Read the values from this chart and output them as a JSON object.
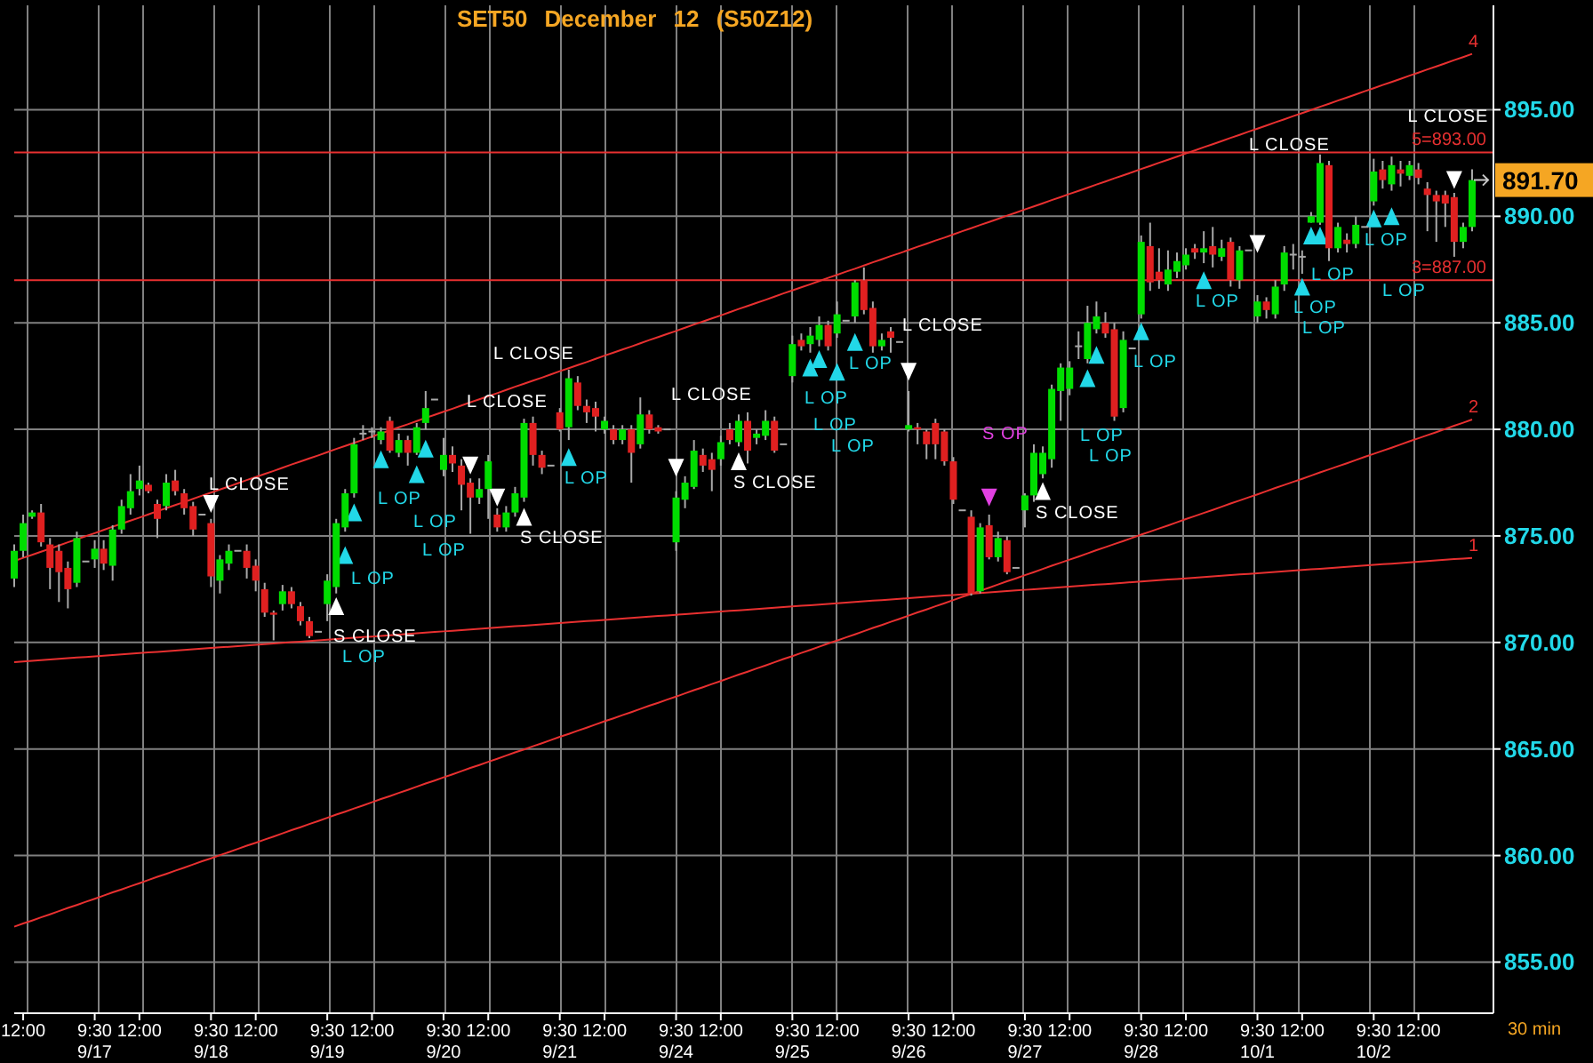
{
  "chart_data": {
    "type": "candlestick",
    "title": "SET50 December 12 (S50Z12)",
    "categories": [
      null,
      "12:00",
      null,
      null,
      null,
      null,
      null,
      null,
      null,
      "9:30\n9/17",
      null,
      null,
      null,
      null,
      "12:00",
      null,
      null,
      null,
      null,
      null,
      null,
      null,
      "9:30\n9/18",
      null,
      null,
      null,
      null,
      "12:00",
      null,
      null,
      null,
      null,
      null,
      null,
      null,
      "9:30\n9/19",
      null,
      null,
      null,
      null,
      "12:00",
      null,
      null,
      null,
      null,
      null,
      null,
      null,
      "9:30\n9/20",
      null,
      null,
      null,
      null,
      "12:00",
      null,
      null,
      null,
      null,
      null,
      null,
      null,
      "9:30\n9/21",
      null,
      null,
      null,
      null,
      "12:00",
      null,
      null,
      null,
      null,
      null,
      null,
      null,
      "9:30\n9/24",
      null,
      null,
      null,
      null,
      "12:00",
      null,
      null,
      null,
      null,
      null,
      null,
      null,
      "9:30\n9/25",
      null,
      null,
      null,
      null,
      "12:00",
      null,
      null,
      null,
      null,
      null,
      null,
      null,
      "9:30\n9/26",
      null,
      null,
      null,
      null,
      "12:00",
      null,
      null,
      null,
      null,
      null,
      null,
      null,
      "9:30\n9/27",
      null,
      null,
      null,
      null,
      "12:00",
      null,
      null,
      null,
      null,
      null,
      null,
      null,
      "9:30\n9/28",
      null,
      null,
      null,
      null,
      "12:00",
      null,
      null,
      null,
      null,
      null,
      null,
      null,
      "9:30\n10/1",
      null,
      null,
      null,
      null,
      "12:00",
      null,
      null,
      null,
      null,
      null,
      null,
      null,
      "9:30\n10/2",
      null,
      null,
      null,
      null,
      "12:00",
      null,
      null,
      null,
      null,
      null,
      null
    ],
    "ohlc": [
      [
        873.0,
        874.6,
        872.6,
        874.3
      ],
      [
        874.3,
        876.0,
        874.0,
        875.6
      ],
      [
        875.9,
        876.2,
        875.8,
        876.1
      ],
      [
        876.1,
        876.5,
        874.5,
        874.7
      ],
      [
        874.6,
        874.9,
        872.5,
        873.5
      ],
      [
        874.3,
        874.6,
        871.9,
        873.3
      ],
      [
        873.5,
        873.8,
        871.6,
        872.5
      ],
      [
        872.8,
        875.2,
        872.6,
        874.9
      ],
      [
        873.8,
        873.8,
        873.8,
        873.8
      ],
      [
        873.9,
        874.8,
        873.5,
        874.4
      ],
      [
        874.4,
        874.8,
        873.4,
        873.7
      ],
      [
        873.6,
        875.5,
        872.9,
        875.3
      ],
      [
        875.3,
        876.7,
        875.1,
        876.4
      ],
      [
        876.3,
        877.9,
        876.0,
        877.1
      ],
      [
        877.2,
        878.3,
        876.9,
        877.6
      ],
      [
        877.4,
        877.5,
        877.0,
        877.1
      ],
      [
        876.5,
        876.7,
        874.9,
        875.8
      ],
      [
        876.4,
        877.9,
        876.2,
        877.5
      ],
      [
        877.6,
        878.1,
        876.9,
        877.1
      ],
      [
        877.0,
        877.2,
        876.0,
        876.3
      ],
      [
        876.4,
        876.6,
        875.0,
        875.3
      ],
      [
        876.0,
        876.0,
        876.0,
        876.0
      ],
      [
        875.6,
        875.8,
        872.6,
        873.1
      ],
      [
        872.9,
        874.1,
        872.3,
        873.9
      ],
      [
        873.7,
        874.6,
        873.4,
        874.3
      ],
      [
        874.3,
        874.3,
        874.3,
        874.3
      ],
      [
        874.3,
        874.6,
        873.0,
        873.5
      ],
      [
        873.6,
        873.9,
        872.4,
        872.9
      ],
      [
        872.5,
        872.8,
        871.2,
        871.4
      ],
      [
        871.4,
        871.5,
        870.1,
        871.3
      ],
      [
        871.8,
        872.7,
        871.5,
        872.4
      ],
      [
        872.4,
        872.6,
        871.6,
        871.8
      ],
      [
        871.7,
        871.9,
        870.8,
        871.0
      ],
      [
        871.0,
        871.2,
        870.2,
        870.3
      ],
      [
        870.5,
        870.5,
        870.5,
        870.5
      ],
      [
        871.8,
        873.2,
        871.0,
        872.9
      ],
      [
        872.6,
        875.8,
        872.3,
        875.6
      ],
      [
        875.4,
        877.2,
        875.2,
        877.0
      ],
      [
        877.0,
        879.6,
        876.8,
        879.3
      ],
      [
        879.8,
        880.2,
        879.5,
        879.8
      ],
      [
        879.9,
        880.1,
        879.6,
        879.9
      ],
      [
        879.5,
        880.1,
        879.3,
        879.9
      ],
      [
        880.4,
        880.6,
        878.9,
        879.0
      ],
      [
        878.9,
        879.8,
        878.7,
        879.5
      ],
      [
        879.5,
        879.7,
        878.3,
        878.9
      ],
      [
        878.9,
        880.3,
        878.8,
        880.1
      ],
      [
        880.3,
        881.8,
        880.0,
        881.0
      ],
      [
        881.4,
        881.4,
        881.4,
        881.4
      ],
      [
        878.1,
        879.6,
        877.8,
        878.8
      ],
      [
        878.8,
        879.2,
        878.0,
        878.4
      ],
      [
        878.3,
        878.6,
        876.2,
        877.4
      ],
      [
        877.5,
        877.7,
        875.1,
        876.8
      ],
      [
        876.8,
        877.7,
        876.5,
        877.2
      ],
      [
        877.2,
        878.8,
        875.8,
        878.5
      ],
      [
        876.0,
        876.3,
        875.2,
        875.4
      ],
      [
        875.4,
        876.4,
        875.2,
        876.1
      ],
      [
        876.1,
        877.3,
        875.9,
        877.0
      ],
      [
        876.8,
        880.5,
        876.6,
        880.3
      ],
      [
        880.3,
        880.6,
        878.3,
        878.8
      ],
      [
        878.8,
        879.0,
        877.9,
        878.2
      ],
      [
        878.3,
        878.3,
        878.3,
        878.3
      ],
      [
        880.8,
        881.0,
        879.9,
        880.0
      ],
      [
        880.1,
        882.8,
        879.5,
        882.4
      ],
      [
        882.2,
        882.5,
        880.9,
        881.1
      ],
      [
        881.1,
        881.4,
        880.3,
        880.8
      ],
      [
        881.0,
        881.3,
        879.9,
        880.6
      ],
      [
        880.0,
        880.6,
        879.8,
        880.4
      ],
      [
        880.0,
        880.2,
        879.3,
        879.5
      ],
      [
        879.5,
        880.2,
        879.3,
        880.0
      ],
      [
        880.0,
        880.2,
        877.5,
        878.9
      ],
      [
        879.3,
        881.5,
        879.1,
        880.7
      ],
      [
        880.7,
        880.9,
        879.8,
        880.0
      ],
      [
        880.1,
        880.2,
        879.8,
        879.9
      ],
      [
        880.0,
        880.0,
        880.0,
        880.0
      ],
      [
        874.7,
        877.1,
        874.3,
        876.8
      ],
      [
        876.7,
        877.8,
        876.3,
        877.5
      ],
      [
        877.3,
        879.5,
        877.2,
        879.0
      ],
      [
        878.8,
        879.1,
        878.0,
        878.3
      ],
      [
        878.6,
        878.9,
        877.1,
        878.1
      ],
      [
        878.6,
        879.7,
        878.3,
        879.4
      ],
      [
        880.0,
        880.3,
        879.3,
        879.5
      ],
      [
        879.4,
        880.7,
        879.2,
        880.4
      ],
      [
        880.4,
        880.8,
        878.4,
        879.0
      ],
      [
        879.6,
        880.0,
        879.3,
        879.8
      ],
      [
        879.7,
        880.9,
        879.5,
        880.4
      ],
      [
        880.4,
        880.6,
        878.9,
        879.0
      ],
      [
        879.3,
        879.3,
        879.3,
        879.3
      ],
      [
        882.5,
        884.4,
        882.2,
        884.0
      ],
      [
        884.2,
        884.5,
        883.7,
        883.9
      ],
      [
        884.0,
        884.8,
        883.6,
        884.4
      ],
      [
        884.2,
        885.3,
        883.9,
        884.9
      ],
      [
        884.9,
        885.1,
        883.7,
        883.9
      ],
      [
        884.5,
        886.0,
        884.3,
        885.4
      ],
      [
        885.1,
        885.1,
        885.1,
        885.1
      ],
      [
        885.3,
        887.0,
        885.0,
        886.9
      ],
      [
        887.0,
        887.6,
        885.4,
        885.6
      ],
      [
        885.7,
        886.0,
        883.6,
        883.9
      ],
      [
        883.9,
        884.5,
        883.7,
        884.2
      ],
      [
        884.6,
        884.8,
        883.6,
        884.3
      ],
      [
        884.1,
        884.1,
        884.1,
        884.1
      ],
      [
        880.0,
        881.8,
        879.9,
        880.2
      ],
      [
        880.1,
        880.3,
        879.3,
        880.0
      ],
      [
        879.9,
        880.0,
        878.6,
        879.3
      ],
      [
        880.3,
        880.5,
        878.6,
        879.3
      ],
      [
        879.9,
        880.0,
        878.3,
        878.5
      ],
      [
        878.5,
        878.7,
        876.5,
        876.7
      ],
      [
        876.2,
        876.2,
        876.2,
        876.2
      ],
      [
        875.9,
        876.2,
        872.2,
        872.3
      ],
      [
        872.4,
        875.6,
        872.3,
        875.4
      ],
      [
        875.5,
        876.0,
        873.9,
        874.0
      ],
      [
        874.0,
        875.2,
        873.8,
        874.9
      ],
      [
        874.8,
        875.0,
        873.2,
        873.3
      ],
      [
        873.5,
        873.5,
        873.5,
        873.5
      ],
      [
        876.2,
        877.0,
        875.4,
        876.9
      ],
      [
        876.9,
        879.3,
        876.6,
        878.9
      ],
      [
        877.9,
        879.2,
        877.7,
        878.9
      ],
      [
        878.6,
        882.1,
        878.2,
        881.9
      ],
      [
        881.8,
        883.1,
        880.4,
        882.9
      ],
      [
        881.9,
        883.2,
        881.6,
        882.9
      ],
      [
        883.9,
        884.6,
        883.3,
        883.9
      ],
      [
        883.3,
        885.8,
        883.1,
        885.0
      ],
      [
        884.7,
        886.0,
        884.5,
        885.3
      ],
      [
        885.0,
        885.5,
        884.3,
        884.5
      ],
      [
        884.7,
        885.0,
        880.4,
        880.6
      ],
      [
        881.0,
        884.6,
        880.8,
        884.2
      ],
      [
        883.8,
        883.8,
        883.8,
        883.8
      ],
      [
        885.4,
        889.1,
        885.2,
        888.8
      ],
      [
        888.6,
        889.7,
        886.5,
        886.9
      ],
      [
        887.4,
        888.5,
        886.6,
        887.0
      ],
      [
        886.8,
        888.4,
        886.5,
        887.5
      ],
      [
        887.4,
        888.3,
        887.1,
        887.9
      ],
      [
        887.7,
        888.5,
        887.5,
        888.2
      ],
      [
        888.5,
        888.7,
        888.0,
        888.3
      ],
      [
        888.3,
        889.3,
        887.8,
        888.5
      ],
      [
        888.6,
        889.5,
        887.6,
        888.2
      ],
      [
        888.1,
        888.9,
        887.9,
        888.5
      ],
      [
        888.8,
        889.0,
        886.7,
        887.0
      ],
      [
        887.0,
        888.6,
        886.6,
        888.4
      ],
      [
        888.4,
        888.4,
        888.4,
        888.4
      ],
      [
        885.3,
        886.3,
        885.0,
        886.0
      ],
      [
        886.0,
        886.2,
        885.2,
        885.6
      ],
      [
        885.4,
        887.0,
        885.2,
        886.7
      ],
      [
        886.8,
        888.6,
        886.5,
        888.3
      ],
      [
        888.2,
        888.7,
        887.5,
        888.2
      ],
      [
        888.1,
        888.4,
        887.3,
        888.1
      ],
      [
        889.7,
        890.2,
        889.7,
        890.0
      ],
      [
        889.7,
        892.9,
        889.6,
        892.5
      ],
      [
        892.4,
        892.6,
        887.9,
        888.5
      ],
      [
        888.5,
        889.7,
        888.3,
        889.5
      ],
      [
        888.9,
        889.2,
        888.3,
        888.7
      ],
      [
        888.7,
        890.0,
        888.5,
        889.6
      ],
      [
        889.5,
        889.5,
        889.5,
        889.5
      ],
      [
        890.7,
        892.7,
        890.5,
        892.1
      ],
      [
        892.2,
        892.6,
        891.3,
        891.7
      ],
      [
        891.5,
        892.8,
        891.2,
        892.4
      ],
      [
        892.2,
        892.6,
        891.4,
        892.0
      ],
      [
        891.9,
        892.6,
        891.7,
        892.4
      ],
      [
        892.2,
        892.5,
        891.5,
        891.8
      ],
      [
        891.3,
        891.6,
        889.3,
        891.0
      ],
      [
        891.0,
        891.2,
        888.8,
        890.7
      ],
      [
        891.0,
        891.2,
        889.5,
        890.6
      ],
      [
        890.9,
        891.1,
        888.1,
        888.8
      ],
      [
        888.8,
        889.7,
        888.5,
        889.5
      ],
      [
        889.5,
        892.2,
        889.3,
        891.7
      ]
    ],
    "color": "#a8a8a8",
    "colors": [
      "#00dd00",
      "#00dd00",
      "#00dd00",
      "#e02020",
      "#e02020",
      "#e02020",
      "#e02020",
      "#00dd00",
      "#a8a8a8",
      "#00dd00",
      "#e02020",
      "#00dd00",
      "#00dd00",
      "#00dd00",
      "#00dd00",
      "#e02020",
      "#e02020",
      "#00dd00",
      "#e02020",
      "#e02020",
      "#e02020",
      "#a8a8a8",
      "#e02020",
      "#00dd00",
      "#00dd00",
      "#a8a8a8",
      "#e02020",
      "#e02020",
      "#e02020",
      "#e02020",
      "#00dd00",
      "#e02020",
      "#e02020",
      "#e02020",
      "#a8a8a8",
      "#00dd00",
      "#00dd00",
      "#00dd00",
      "#00dd00",
      "#a8a8a8",
      "#a8a8a8",
      "#00dd00",
      "#e02020",
      "#00dd00",
      "#e02020",
      "#00dd00",
      "#00dd00",
      "#a8a8a8",
      "#00dd00",
      "#e02020",
      "#e02020",
      "#e02020",
      "#00dd00",
      "#00dd00",
      "#e02020",
      "#00dd00",
      "#00dd00",
      "#00dd00",
      "#e02020",
      "#e02020",
      "#a8a8a8",
      "#e02020",
      "#00dd00",
      "#e02020",
      "#e02020",
      "#e02020",
      "#00dd00",
      "#e02020",
      "#00dd00",
      "#e02020",
      "#00dd00",
      "#e02020",
      "#e02020",
      "#a8a8a8",
      "#00dd00",
      "#00dd00",
      "#00dd00",
      "#e02020",
      "#e02020",
      "#00dd00",
      "#e02020",
      "#00dd00",
      "#e02020",
      "#00dd00",
      "#00dd00",
      "#e02020",
      "#a8a8a8",
      "#00dd00",
      "#e02020",
      "#00dd00",
      "#00dd00",
      "#e02020",
      "#00dd00",
      "#a8a8a8",
      "#00dd00",
      "#e02020",
      "#e02020",
      "#00dd00",
      "#e02020",
      "#a8a8a8",
      "#00dd00",
      "#e02020",
      "#e02020",
      "#e02020",
      "#e02020",
      "#e02020",
      "#a8a8a8",
      "#e02020",
      "#00dd00",
      "#e02020",
      "#00dd00",
      "#e02020",
      "#a8a8a8",
      "#00dd00",
      "#00dd00",
      "#00dd00",
      "#00dd00",
      "#00dd00",
      "#00dd00",
      "#a8a8a8",
      "#00dd00",
      "#00dd00",
      "#e02020",
      "#e02020",
      "#00dd00",
      "#a8a8a8",
      "#00dd00",
      "#e02020",
      "#e02020",
      "#00dd00",
      "#00dd00",
      "#00dd00",
      "#e02020",
      "#00dd00",
      "#e02020",
      "#00dd00",
      "#e02020",
      "#00dd00",
      "#a8a8a8",
      "#00dd00",
      "#e02020",
      "#00dd00",
      "#00dd00",
      "#a8a8a8",
      "#a8a8a8",
      "#00dd00",
      "#00dd00",
      "#e02020",
      "#00dd00",
      "#e02020",
      "#00dd00",
      "#a8a8a8",
      "#00dd00",
      "#e02020",
      "#00dd00",
      "#e02020",
      "#00dd00",
      "#e02020",
      "#e02020",
      "#e02020",
      "#e02020",
      "#e02020",
      "#00dd00",
      "#00dd00"
    ],
    "series": [
      {
        "type": "line",
        "name": "1",
        "color": "#e83030",
        "values": [
          869.08,
          869.11,
          869.14,
          869.17,
          869.2,
          869.23,
          869.26,
          869.29,
          869.32,
          869.35,
          869.38,
          869.41,
          869.44,
          869.47,
          869.5,
          869.53,
          869.56,
          869.59,
          869.62,
          869.65,
          869.68,
          869.71,
          869.74,
          869.77,
          869.8,
          869.83,
          869.86,
          869.89,
          869.92,
          869.95,
          869.98,
          870.01,
          870.04,
          870.07,
          870.1,
          870.13,
          870.16,
          870.19,
          870.22,
          870.25,
          870.28,
          870.31,
          870.34,
          870.37,
          870.4,
          870.43,
          870.46,
          870.49,
          870.52,
          870.55,
          870.58,
          870.61,
          870.64,
          870.67,
          870.7,
          870.73,
          870.76,
          870.79,
          870.82,
          870.85,
          870.88,
          870.91,
          870.94,
          870.97,
          871.0,
          871.03,
          871.06,
          871.09,
          871.12,
          871.15,
          871.18,
          871.21,
          871.24,
          871.27,
          871.3,
          871.33,
          871.36,
          871.39,
          871.42,
          871.45,
          871.48,
          871.51,
          871.54,
          871.57,
          871.6,
          871.63,
          871.66,
          871.69,
          871.72,
          871.75,
          871.78,
          871.81,
          871.84,
          871.87,
          871.9,
          871.93,
          871.96,
          871.99,
          872.02,
          872.05,
          872.08,
          872.11,
          872.14,
          872.17,
          872.2,
          872.23,
          872.26,
          872.29,
          872.32,
          872.35,
          872.38,
          872.41,
          872.44,
          872.47,
          872.5,
          872.53,
          872.56,
          872.59,
          872.62,
          872.65,
          872.68,
          872.71,
          872.74,
          872.77,
          872.8,
          872.83,
          872.86,
          872.89,
          872.92,
          872.95,
          872.98,
          873.01,
          873.04,
          873.07,
          873.1,
          873.13,
          873.16,
          873.19,
          873.22,
          873.25,
          873.28,
          873.31,
          873.34,
          873.37,
          873.4,
          873.43,
          873.46,
          873.49,
          873.52,
          873.55,
          873.58,
          873.61,
          873.64,
          873.67,
          873.7,
          873.73,
          873.76,
          873.79,
          873.82,
          873.85,
          873.88,
          873.91,
          873.94,
          873.97
        ]
      },
      {
        "type": "line",
        "name": "2",
        "color": "#e83030",
        "values": [
          856.66,
          856.81,
          856.95,
          857.1,
          857.24,
          857.39,
          857.54,
          857.68,
          857.83,
          857.97,
          858.12,
          858.27,
          858.41,
          858.56,
          858.7,
          858.85,
          859.0,
          859.14,
          859.29,
          859.43,
          859.58,
          859.73,
          859.87,
          860.02,
          860.16,
          860.31,
          860.46,
          860.6,
          860.75,
          860.89,
          861.04,
          861.19,
          861.33,
          861.48,
          861.62,
          861.77,
          861.92,
          862.06,
          862.21,
          862.35,
          862.5,
          862.65,
          862.79,
          862.94,
          863.08,
          863.23,
          863.38,
          863.52,
          863.67,
          863.81,
          863.96,
          864.11,
          864.25,
          864.4,
          864.54,
          864.69,
          864.84,
          864.98,
          865.13,
          865.27,
          865.42,
          865.57,
          865.71,
          865.86,
          866.0,
          866.15,
          866.3,
          866.44,
          866.59,
          866.73,
          866.88,
          867.03,
          867.17,
          867.32,
          867.46,
          867.61,
          867.76,
          867.9,
          868.05,
          868.19,
          868.34,
          868.49,
          868.63,
          868.78,
          868.92,
          869.07,
          869.22,
          869.36,
          869.51,
          869.65,
          869.8,
          869.95,
          870.09,
          870.24,
          870.38,
          870.53,
          870.68,
          870.82,
          870.97,
          871.11,
          871.26,
          871.41,
          871.55,
          871.7,
          871.84,
          871.99,
          872.14,
          872.28,
          872.43,
          872.57,
          872.72,
          872.87,
          873.01,
          873.16,
          873.3,
          873.45,
          873.6,
          873.74,
          873.89,
          874.03,
          874.18,
          874.33,
          874.47,
          874.62,
          874.76,
          874.91,
          875.06,
          875.2,
          875.35,
          875.49,
          875.64,
          875.79,
          875.93,
          876.08,
          876.22,
          876.37,
          876.52,
          876.66,
          876.81,
          876.95,
          877.1,
          877.25,
          877.39,
          877.54,
          877.68,
          877.83,
          877.98,
          878.12,
          878.27,
          878.41,
          878.56,
          878.71,
          878.85,
          879.0,
          879.14,
          879.29,
          879.44,
          879.58,
          879.73,
          879.87,
          880.02,
          880.17,
          880.31,
          880.46
        ]
      },
      {
        "type": "line",
        "name": "4",
        "color": "#e83030",
        "values": [
          873.82,
          873.97,
          874.11,
          874.26,
          874.4,
          874.55,
          874.7,
          874.84,
          874.99,
          875.13,
          875.28,
          875.43,
          875.57,
          875.72,
          875.86,
          876.01,
          876.16,
          876.3,
          876.45,
          876.59,
          876.74,
          876.89,
          877.03,
          877.18,
          877.32,
          877.47,
          877.62,
          877.76,
          877.91,
          878.05,
          878.2,
          878.35,
          878.49,
          878.64,
          878.78,
          878.93,
          879.08,
          879.22,
          879.37,
          879.51,
          879.66,
          879.81,
          879.95,
          880.1,
          880.24,
          880.39,
          880.54,
          880.68,
          880.83,
          880.97,
          881.12,
          881.27,
          881.41,
          881.56,
          881.7,
          881.85,
          882.0,
          882.14,
          882.29,
          882.43,
          882.58,
          882.73,
          882.87,
          883.02,
          883.16,
          883.31,
          883.46,
          883.6,
          883.75,
          883.89,
          884.04,
          884.19,
          884.33,
          884.48,
          884.62,
          884.77,
          884.92,
          885.06,
          885.21,
          885.35,
          885.5,
          885.65,
          885.79,
          885.94,
          886.08,
          886.23,
          886.38,
          886.52,
          886.67,
          886.81,
          886.96,
          887.11,
          887.25,
          887.4,
          887.54,
          887.69,
          887.84,
          887.98,
          888.13,
          888.27,
          888.42,
          888.57,
          888.71,
          888.86,
          889.0,
          889.15,
          889.3,
          889.44,
          889.59,
          889.73,
          889.88,
          890.03,
          890.17,
          890.32,
          890.46,
          890.61,
          890.76,
          890.9,
          891.05,
          891.19,
          891.34,
          891.49,
          891.63,
          891.78,
          891.92,
          892.07,
          892.22,
          892.36,
          892.51,
          892.65,
          892.8,
          892.95,
          893.09,
          893.24,
          893.38,
          893.53,
          893.68,
          893.82,
          893.97,
          894.11,
          894.26,
          894.41,
          894.55,
          894.7,
          894.84,
          894.99,
          895.14,
          895.28,
          895.43,
          895.57,
          895.72,
          895.87,
          896.01,
          896.16,
          896.3,
          896.45,
          896.6,
          896.74,
          896.89,
          897.03,
          897.18,
          897.33,
          897.47,
          897.62
        ]
      },
      {
        "type": "scatter",
        "name": "L OP",
        "color": "#22d8e8",
        "marker": "triangle",
        "values": [
          null,
          null,
          null,
          null,
          null,
          null,
          null,
          null,
          null,
          null,
          null,
          null,
          null,
          null,
          null,
          null,
          null,
          null,
          null,
          null,
          null,
          null,
          null,
          null,
          null,
          null,
          null,
          null,
          null,
          null,
          null,
          null,
          null,
          null,
          null,
          null,
          null,
          874.1,
          876.1,
          null,
          null,
          878.6,
          null,
          null,
          null,
          877.9,
          879.1,
          null,
          null,
          null,
          null,
          null,
          null,
          null,
          null,
          null,
          null,
          null,
          null,
          null,
          null,
          null,
          878.7,
          null,
          null,
          null,
          null,
          null,
          null,
          null,
          null,
          null,
          null,
          null,
          null,
          null,
          null,
          null,
          null,
          null,
          null,
          null,
          null,
          null,
          null,
          null,
          null,
          null,
          null,
          882.9,
          883.3,
          null,
          882.7,
          null,
          884.1,
          null,
          null,
          null,
          null,
          null,
          null,
          null,
          null,
          null,
          null,
          null,
          null,
          null,
          null,
          null,
          null,
          null,
          null,
          null,
          null,
          null,
          null,
          null,
          null,
          null,
          882.4,
          883.5,
          null,
          null,
          null,
          null,
          884.6,
          null,
          null,
          null,
          null,
          null,
          null,
          887.0,
          null,
          null,
          null,
          null,
          null,
          null,
          null,
          null,
          null,
          null,
          886.7,
          889.1,
          889.1,
          null,
          null,
          null,
          null,
          null,
          889.9,
          null,
          890.0,
          null,
          null,
          null,
          null,
          null,
          null,
          null,
          null,
          null
        ]
      },
      {
        "type": "scatter",
        "name": "L CLOSE",
        "color": "#ffffff",
        "marker": "triangle",
        "values": [
          null,
          null,
          null,
          null,
          null,
          null,
          null,
          null,
          null,
          null,
          null,
          null,
          null,
          null,
          null,
          null,
          null,
          null,
          null,
          null,
          null,
          null,
          876.5,
          null,
          null,
          null,
          null,
          null,
          null,
          null,
          null,
          null,
          null,
          null,
          null,
          null,
          null,
          null,
          null,
          null,
          null,
          null,
          null,
          null,
          null,
          null,
          null,
          null,
          null,
          null,
          null,
          878.3,
          null,
          null,
          876.8,
          null,
          null,
          null,
          null,
          null,
          null,
          null,
          null,
          null,
          null,
          null,
          null,
          null,
          null,
          null,
          null,
          null,
          null,
          null,
          878.2,
          null,
          null,
          null,
          null,
          null,
          null,
          null,
          null,
          null,
          null,
          null,
          null,
          null,
          null,
          null,
          null,
          null,
          null,
          null,
          null,
          null,
          null,
          null,
          null,
          null,
          882.7,
          null,
          null,
          null,
          null,
          null,
          null,
          null,
          null,
          null,
          null,
          null,
          null,
          null,
          null,
          null,
          null,
          null,
          null,
          null,
          null,
          null,
          null,
          null,
          null,
          null,
          null,
          null,
          null,
          null,
          null,
          null,
          null,
          null,
          null,
          null,
          null,
          null,
          null,
          888.7,
          null,
          null,
          null,
          null,
          null,
          null,
          null,
          null,
          null,
          null,
          null,
          null,
          null,
          null,
          null,
          null,
          null,
          null,
          null,
          null,
          null,
          891.7,
          null,
          null
        ]
      },
      {
        "type": "scatter",
        "name": "S CLOSE",
        "color": "#ffffff",
        "marker": "triangle",
        "values": [
          null,
          null,
          null,
          null,
          null,
          null,
          null,
          null,
          null,
          null,
          null,
          null,
          null,
          null,
          null,
          null,
          null,
          null,
          null,
          null,
          null,
          null,
          null,
          null,
          null,
          null,
          null,
          null,
          null,
          null,
          null,
          null,
          null,
          null,
          null,
          null,
          871.7,
          null,
          null,
          null,
          null,
          null,
          null,
          null,
          null,
          null,
          null,
          null,
          null,
          null,
          null,
          null,
          null,
          null,
          null,
          null,
          null,
          875.9,
          null,
          null,
          null,
          null,
          null,
          null,
          null,
          null,
          null,
          null,
          null,
          null,
          null,
          null,
          null,
          null,
          null,
          null,
          null,
          null,
          null,
          null,
          null,
          878.5,
          null,
          null,
          null,
          null,
          null,
          null,
          null,
          null,
          null,
          null,
          null,
          null,
          null,
          null,
          null,
          null,
          null,
          null,
          null,
          null,
          null,
          null,
          null,
          null,
          null,
          null,
          null,
          null,
          null,
          null,
          null,
          null,
          null,
          877.1,
          null,
          null,
          null,
          null,
          null,
          null,
          null,
          null,
          null,
          null,
          null,
          null,
          null,
          null,
          null,
          null,
          null,
          null,
          null,
          null,
          null,
          null,
          null,
          null,
          null,
          null,
          null,
          null,
          null,
          null,
          null,
          null,
          null,
          null,
          null,
          null,
          null,
          null,
          null,
          null,
          null,
          null,
          null,
          null,
          null,
          null,
          null,
          null
        ]
      },
      {
        "type": "scatter",
        "name": "S OP",
        "color": "#e040e0",
        "marker": "triangle",
        "values": [
          null,
          null,
          null,
          null,
          null,
          null,
          null,
          null,
          null,
          null,
          null,
          null,
          null,
          null,
          null,
          null,
          null,
          null,
          null,
          null,
          null,
          null,
          null,
          null,
          null,
          null,
          null,
          null,
          null,
          null,
          null,
          null,
          null,
          null,
          null,
          null,
          null,
          null,
          null,
          null,
          null,
          null,
          null,
          null,
          null,
          null,
          null,
          null,
          null,
          null,
          null,
          null,
          null,
          null,
          null,
          null,
          null,
          null,
          null,
          null,
          null,
          null,
          null,
          null,
          null,
          null,
          null,
          null,
          null,
          null,
          null,
          null,
          null,
          null,
          null,
          null,
          null,
          null,
          null,
          null,
          null,
          null,
          null,
          null,
          null,
          null,
          null,
          null,
          null,
          null,
          null,
          null,
          null,
          null,
          null,
          null,
          null,
          null,
          null,
          null,
          null,
          null,
          null,
          null,
          null,
          null,
          null,
          null,
          null,
          876.8,
          null,
          null,
          null,
          null,
          null,
          null,
          null,
          null,
          null,
          null,
          null,
          null,
          null,
          null,
          null,
          null,
          null,
          null,
          null,
          null,
          null,
          null,
          null,
          null,
          null,
          null,
          null,
          null,
          null,
          null,
          null,
          null,
          null,
          null,
          null,
          null,
          null,
          null,
          null,
          null,
          null,
          null,
          null,
          null,
          null,
          null,
          null,
          null,
          null,
          null,
          null,
          null,
          null,
          null
        ]
      }
    ],
    "ref_lines": [
      {
        "axis": "y",
        "value": 893,
        "label": "5=893.00",
        "color": "#e83030"
      },
      {
        "axis": "y",
        "value": 887,
        "label": "3=887.00",
        "color": "#e83030"
      }
    ],
    "ylim": [
      852.6,
      899.9
    ],
    "yticks": [
      {
        "value": 855,
        "label": "855.00"
      },
      {
        "value": 860,
        "label": "860.00"
      },
      {
        "value": 865,
        "label": "865.00"
      },
      {
        "value": 870,
        "label": "870.00"
      },
      {
        "value": 875,
        "label": "875.00"
      },
      {
        "value": 880,
        "label": "880.00"
      },
      {
        "value": 885,
        "label": "885.00"
      },
      {
        "value": 890,
        "label": "890.00"
      },
      {
        "value": 891.7,
        "label": "891.70"
      },
      {
        "value": 895,
        "label": "895.00"
      }
    ],
    "grid": true,
    "annotations": [
      "30 min"
    ]
  }
}
